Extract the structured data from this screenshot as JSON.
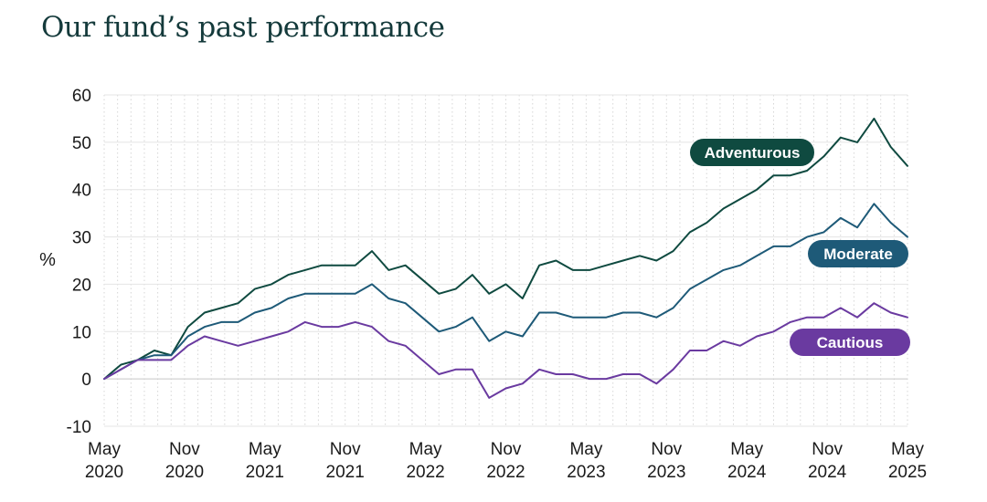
{
  "page": {
    "title": "Our fund’s past performance"
  },
  "chart_data": {
    "type": "line",
    "title": "Our fund’s past performance",
    "xlabel": "",
    "ylabel": "%",
    "ylim": [
      -10,
      60
    ],
    "yticks": [
      60,
      50,
      40,
      30,
      20,
      10,
      0,
      -10
    ],
    "xlim": [
      0,
      60
    ],
    "xticks": [
      {
        "pos": 0,
        "line1": "May",
        "line2": "2020"
      },
      {
        "pos": 6,
        "line1": "Nov",
        "line2": "2020"
      },
      {
        "pos": 12,
        "line1": "May",
        "line2": "2021"
      },
      {
        "pos": 18,
        "line1": "Nov",
        "line2": "2021"
      },
      {
        "pos": 24,
        "line1": "May",
        "line2": "2022"
      },
      {
        "pos": 30,
        "line1": "Nov",
        "line2": "2022"
      },
      {
        "pos": 36,
        "line1": "May",
        "line2": "2023"
      },
      {
        "pos": 42,
        "line1": "Nov",
        "line2": "2023"
      },
      {
        "pos": 48,
        "line1": "May",
        "line2": "2024"
      },
      {
        "pos": 54,
        "line1": "Nov",
        "line2": "2024"
      },
      {
        "pos": 60,
        "line1": "May",
        "line2": "2025"
      }
    ],
    "grid": {
      "horizontal": true,
      "vertical_monthly_dotted": true
    },
    "series": [
      {
        "name": "Adventurous",
        "color": "#0f4a40",
        "values": [
          0,
          3,
          4,
          6,
          5,
          11,
          14,
          15,
          16,
          19,
          20,
          22,
          23,
          24,
          24,
          24,
          27,
          23,
          24,
          21,
          18,
          19,
          22,
          18,
          20,
          17,
          24,
          25,
          23,
          23,
          24,
          25,
          26,
          25,
          27,
          31,
          33,
          36,
          38,
          40,
          43,
          43,
          44,
          47,
          51,
          50,
          55,
          49,
          45
        ]
      },
      {
        "name": "Moderate",
        "color": "#1e5a78",
        "values": [
          0,
          2,
          4,
          5,
          5,
          9,
          11,
          12,
          12,
          14,
          15,
          17,
          18,
          18,
          18,
          18,
          20,
          17,
          16,
          13,
          10,
          11,
          13,
          8,
          10,
          9,
          14,
          14,
          13,
          13,
          13,
          14,
          14,
          13,
          15,
          19,
          21,
          23,
          24,
          26,
          28,
          28,
          30,
          31,
          34,
          32,
          37,
          33,
          30
        ]
      },
      {
        "name": "Cautious",
        "color": "#6a3aa0",
        "values": [
          0,
          2,
          4,
          4,
          4,
          7,
          9,
          8,
          7,
          8,
          9,
          10,
          12,
          11,
          11,
          12,
          11,
          8,
          7,
          4,
          1,
          2,
          2,
          -4,
          -2,
          -1,
          2,
          1,
          1,
          0,
          0,
          1,
          1,
          -1,
          2,
          6,
          6,
          8,
          7,
          9,
          10,
          12,
          13,
          13,
          15,
          13,
          16,
          14,
          13
        ]
      }
    ],
    "legend": {
      "placement": "inline-right-end-of-series"
    }
  }
}
